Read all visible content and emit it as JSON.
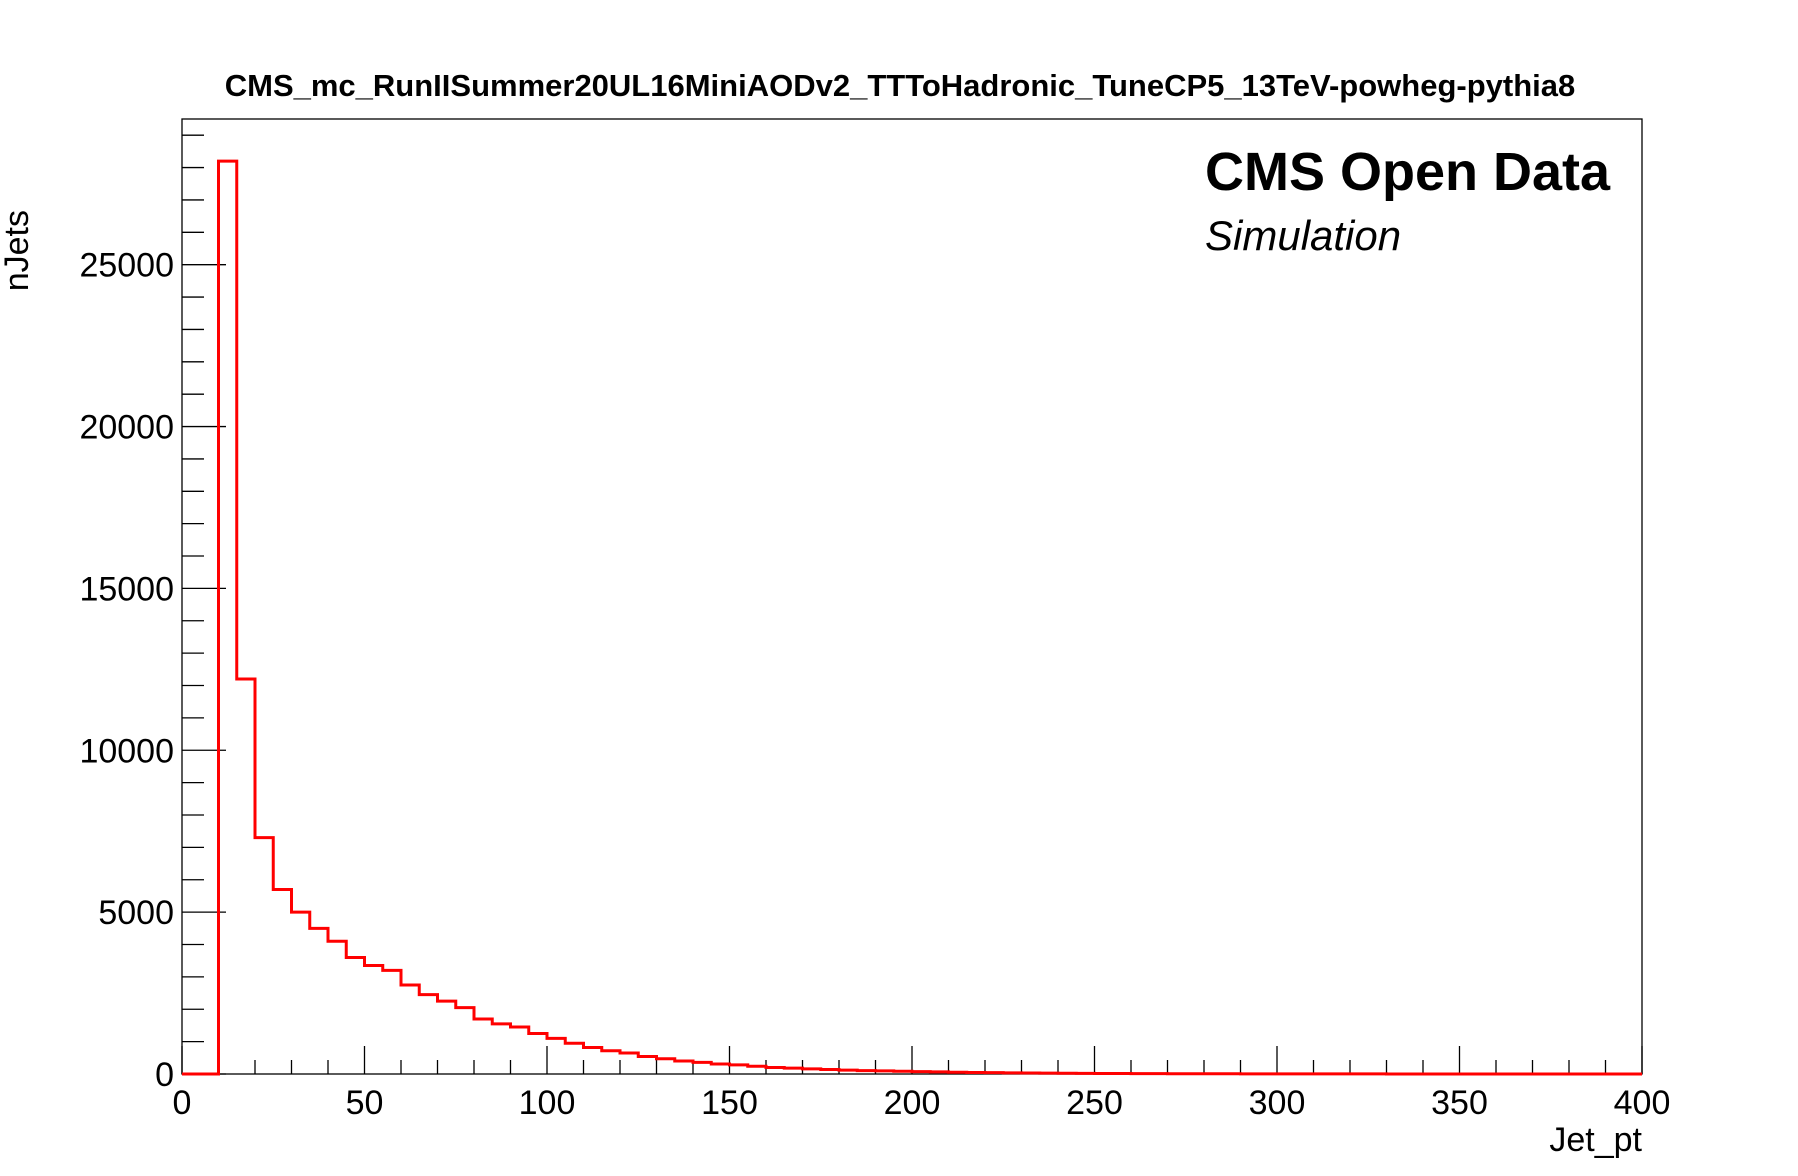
{
  "chart_data": {
    "type": "bar",
    "title": "CMS_mc_RunIISummer20UL16MiniAODv2_TTToHadronic_TuneCP5_13TeV-powheg-pythia8",
    "xlabel": "Jet_pt",
    "ylabel": "nJets",
    "xlim": [
      0,
      400
    ],
    "ylim": [
      0,
      29500
    ],
    "x_ticks": [
      0,
      50,
      100,
      150,
      200,
      250,
      300,
      350,
      400
    ],
    "x_tick_labels": [
      "0",
      "50",
      "100",
      "150",
      "200",
      "250",
      "300",
      "350",
      "400"
    ],
    "y_ticks": [
      0,
      5000,
      10000,
      15000,
      20000,
      25000
    ],
    "y_tick_labels": [
      "0",
      "5000",
      "10000",
      "15000",
      "20000",
      "25000"
    ],
    "bin_width": 5,
    "bin_edges_start": 0,
    "values": [
      0,
      0,
      28200,
      12200,
      7300,
      5700,
      5000,
      4500,
      4100,
      3600,
      3350,
      3200,
      2750,
      2450,
      2250,
      2050,
      1700,
      1550,
      1450,
      1250,
      1100,
      950,
      820,
      720,
      650,
      540,
      470,
      400,
      360,
      310,
      280,
      240,
      200,
      180,
      160,
      140,
      120,
      105,
      95,
      85,
      75,
      65,
      55,
      48,
      42,
      36,
      30,
      26,
      22,
      19,
      16,
      14,
      12,
      10,
      9,
      8,
      7,
      6,
      5,
      4,
      4,
      3,
      3,
      2,
      2,
      2,
      1,
      1,
      1,
      1,
      1,
      1,
      0,
      0,
      0,
      0,
      0,
      0,
      0,
      0
    ],
    "color": "#ff0000",
    "style": "step-histogram",
    "grid": false,
    "legend": "none",
    "annotations": [
      "CMS Open Data",
      "Simulation"
    ]
  }
}
